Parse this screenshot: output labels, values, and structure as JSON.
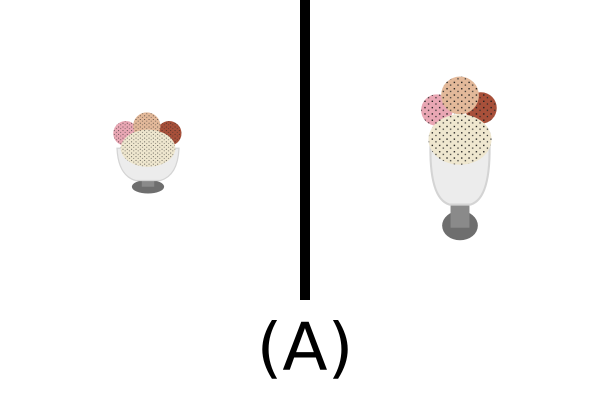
{
  "caption": "(A)",
  "panels": [
    {
      "id": "left",
      "subject": "sundae-small-icon"
    },
    {
      "id": "right",
      "subject": "sundae-large-icon"
    }
  ],
  "colors": {
    "divider": "#000000",
    "background": "#ffffff",
    "scoop_pink": "#e9a7b4",
    "scoop_peach": "#e3b99a",
    "scoop_chocolate": "#a8503a",
    "scoop_vanilla": "#efe7cf",
    "glass": "#ececec",
    "stem": "#6e6e6e"
  }
}
